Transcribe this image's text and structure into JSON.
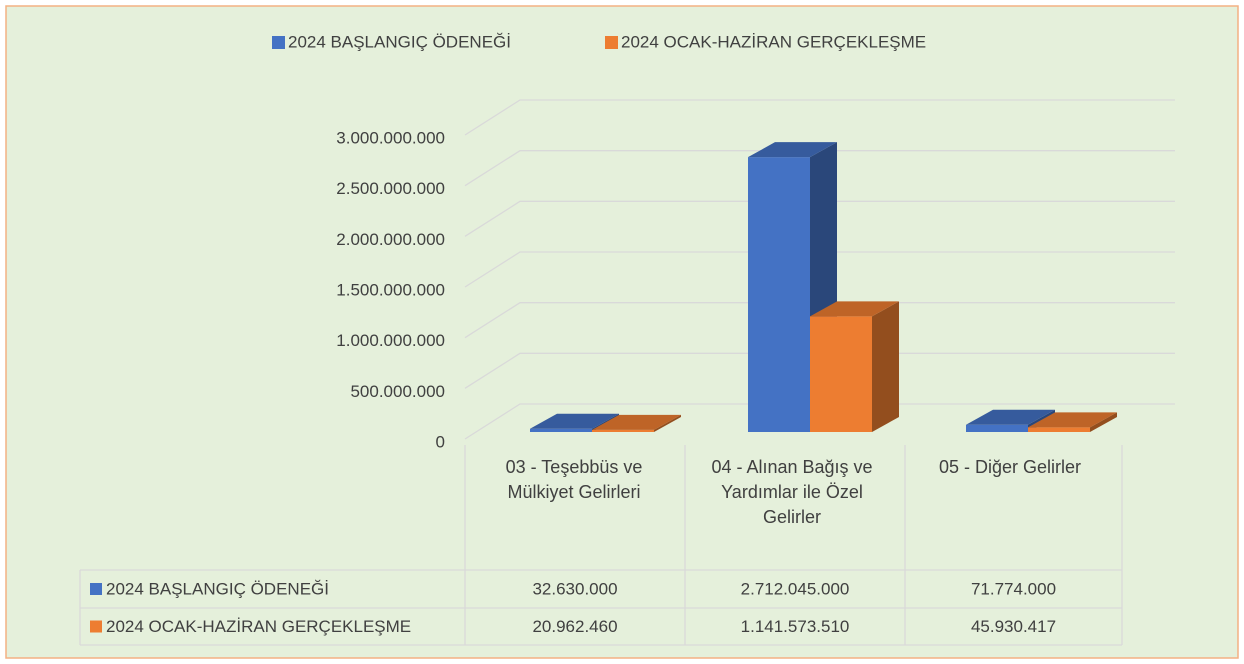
{
  "chart_data": {
    "type": "bar3d",
    "categories": [
      "03 - Teşebbüs ve Mülkiyet Gelirleri",
      "04 - Alınan Bağış ve Yardımlar ile Özel Gelirler",
      "05 - Diğer Gelirler"
    ],
    "series": [
      {
        "name": "2024 BAŞLANGIÇ ÖDENEĞİ",
        "color": "#4472c4",
        "values": [
          32630000,
          2712045000,
          71774000
        ],
        "value_labels": [
          "32.630.000",
          "2.712.045.000",
          "71.774.000"
        ]
      },
      {
        "name": "2024 OCAK-HAZİRAN GERÇEKLEŞME",
        "color": "#ed7d31",
        "values": [
          20962460,
          1141573510,
          45930417
        ],
        "value_labels": [
          "20.962.460",
          "1.141.573.510",
          "45.930.417"
        ]
      }
    ],
    "ylim": [
      0,
      3000000000
    ],
    "yticks": [
      0,
      {
        "value": 500000000,
        "label": "500.000.000"
      },
      {
        "value": 1000000000,
        "label": "1.000.000.000"
      },
      {
        "value": 1500000000,
        "label": "1.500.000.000"
      },
      {
        "value": 2000000000,
        "label": "2.000.000.000"
      },
      {
        "value": 2500000000,
        "label": "2.500.000.000"
      },
      {
        "value": 3000000000,
        "label": "3.000.000.000"
      }
    ],
    "grid": true,
    "legend": "top",
    "data_table": true
  }
}
